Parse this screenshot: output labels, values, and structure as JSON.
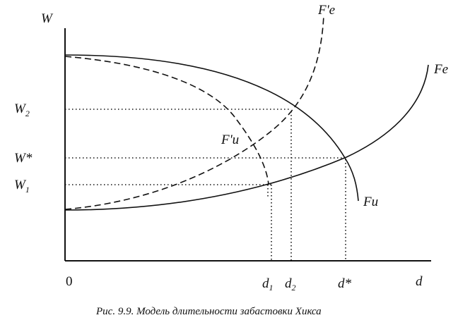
{
  "diagram": {
    "axis_y_label": "W",
    "axis_x_label": "d",
    "origin_label": "0",
    "y_ticks": {
      "w2": {
        "main": "W",
        "sub": "2"
      },
      "wstar": {
        "main": "W*",
        "sub": ""
      },
      "w1": {
        "main": "W",
        "sub": "1"
      }
    },
    "x_ticks": {
      "d1": {
        "main": "d",
        "sub": "1"
      },
      "d2": {
        "main": "d",
        "sub": "2"
      },
      "dstar": {
        "main": "d*",
        "sub": ""
      }
    },
    "curves": {
      "fe_prime": "F'e",
      "fe": "Fe",
      "fu_prime": "F'u",
      "fu": "Fu"
    },
    "caption": "Рис. 9.9. Модель длительности забастовки Хикса"
  }
}
